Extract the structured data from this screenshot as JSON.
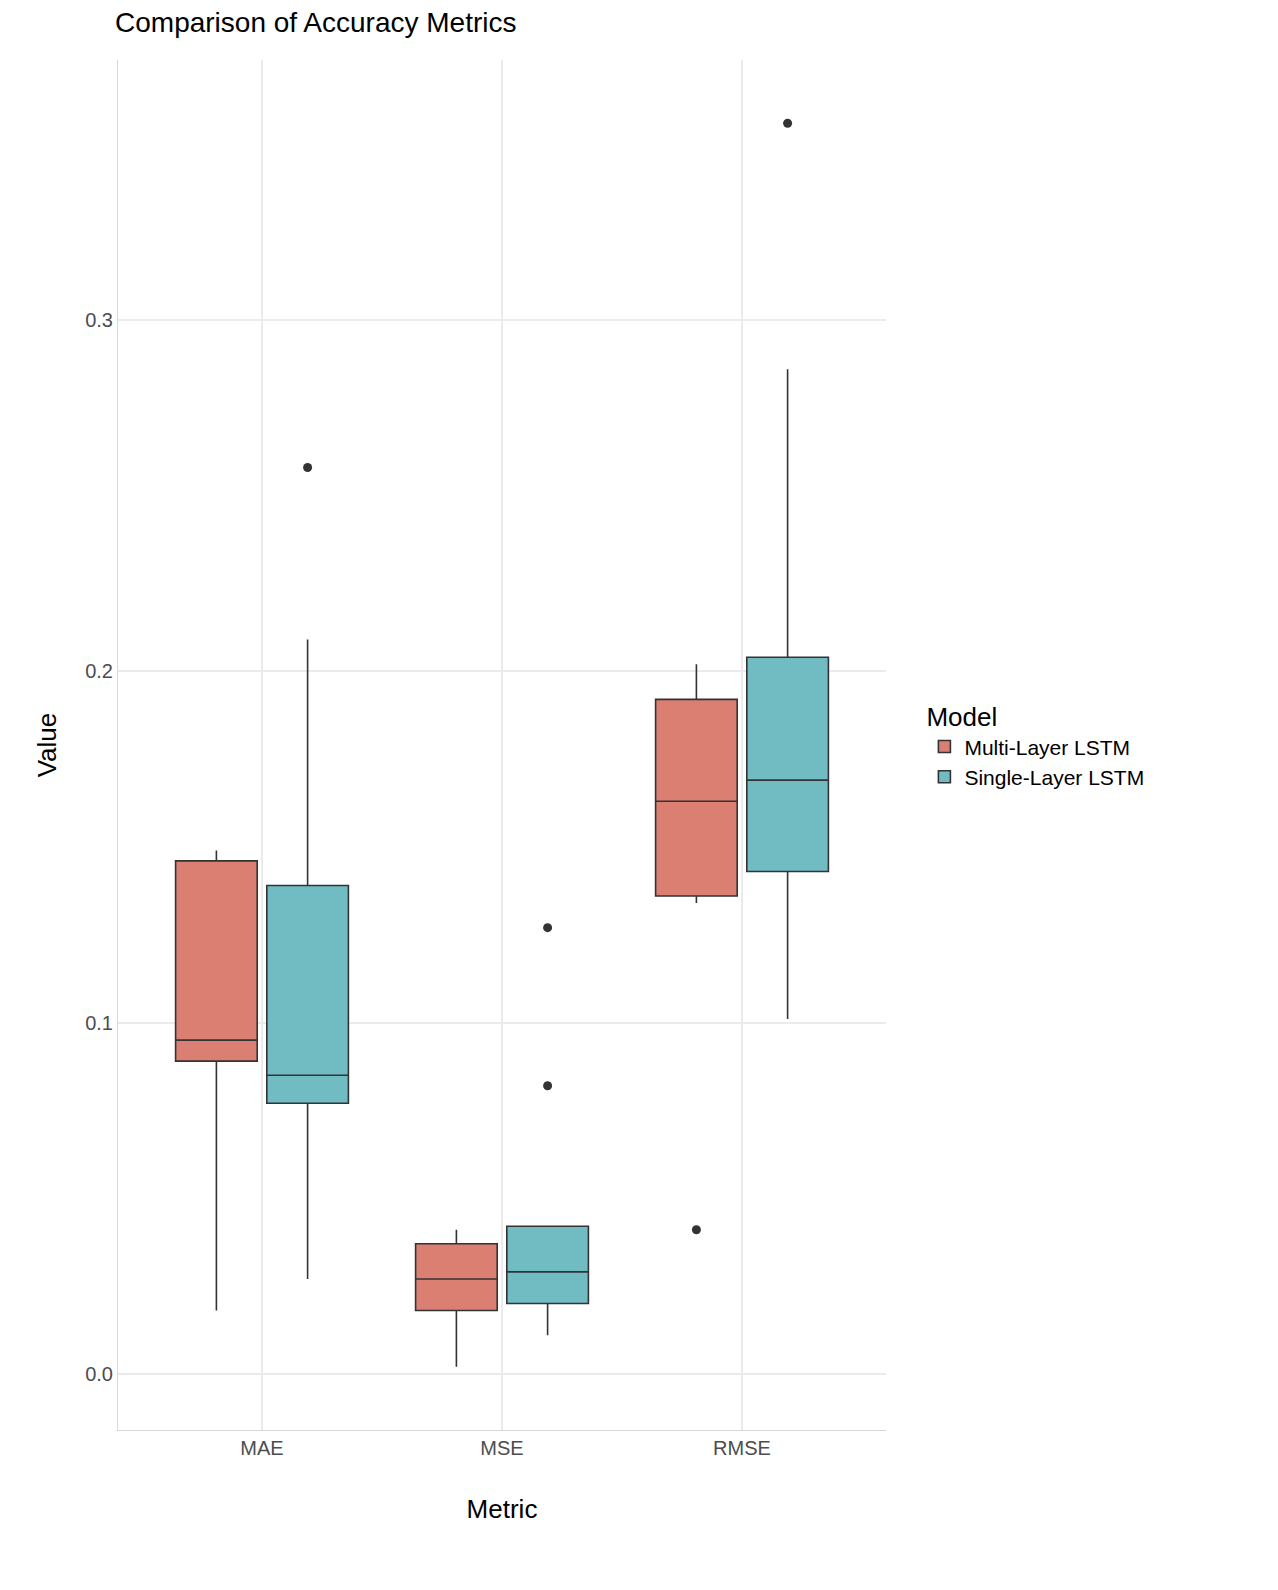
{
  "chart_data": {
    "type": "box",
    "title": "Comparison of Accuracy Metrics",
    "x_label": "Metric",
    "y_label": "Value",
    "legend_title": "Model",
    "legend": "right",
    "grid": true,
    "categories": [
      "MAE",
      "MSE",
      "RMSE"
    ],
    "ylim": [
      -0.016,
      0.374
    ],
    "yticks": [
      {
        "value": 0,
        "label": "0.0"
      },
      0.1,
      0.2,
      0.3
    ],
    "series": [
      {
        "name": "Multi-Layer LSTM",
        "color": "#db7f72",
        "lower_whisker": [
          0.018,
          0.002,
          0.134
        ],
        "q1": [
          0.089,
          0.018,
          0.136
        ],
        "median": [
          0.095,
          0.027,
          0.163
        ],
        "q3": [
          0.146,
          0.037,
          0.192
        ],
        "upper_whisker": [
          0.149,
          0.041,
          0.202
        ],
        "outliers": [
          [],
          [],
          [
            0.041
          ]
        ]
      },
      {
        "name": "Single-Layer LSTM",
        "color": "#70bcc2",
        "lower_whisker": [
          0.027,
          0.011,
          0.101
        ],
        "q1": [
          0.077,
          0.02,
          0.143
        ],
        "median": [
          0.085,
          0.029,
          0.169
        ],
        "q3": [
          0.139,
          0.042,
          0.204
        ],
        "upper_whisker": [
          0.209,
          0.042,
          0.286
        ],
        "outliers": [
          [
            0.258
          ],
          [
            0.127,
            0.082
          ],
          [
            0.356
          ]
        ]
      }
    ]
  }
}
